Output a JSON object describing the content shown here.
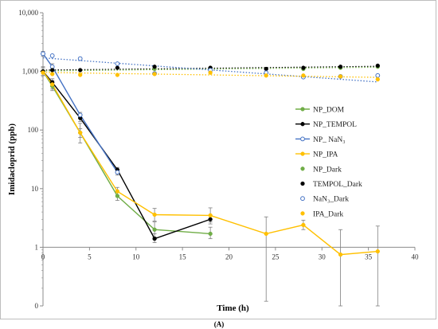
{
  "caption": "(A)",
  "colors": {
    "green": "#70ad47",
    "black": "#000000",
    "blue": "#4472c4",
    "yellow": "#ffc000",
    "axis": "#8c8c8c",
    "error": "#7f7f7f"
  },
  "chart_data": {
    "type": "line",
    "xlabel": "Time (h)",
    "ylabel": "Imidacloprid (ppb)",
    "xlim": [
      0,
      40
    ],
    "y_scale": "log",
    "xticks": [
      "0",
      "5",
      "10",
      "15",
      "20",
      "25",
      "30",
      "35",
      "40"
    ],
    "yticks": [
      {
        "value": 0.1,
        "label": "0"
      },
      {
        "value": 1,
        "label": "1"
      },
      {
        "value": 10,
        "label": "10"
      },
      {
        "value": 100,
        "label": "100"
      },
      {
        "value": 1000,
        "label": "1,000"
      },
      {
        "value": 10000,
        "label": "10,000"
      }
    ],
    "grid": false,
    "legend_position": "right",
    "series": [
      {
        "name": "NP_DOM",
        "style": "line",
        "color": "green",
        "marker": "filled",
        "points": [
          [
            0,
            1000
          ],
          [
            1,
            560
          ],
          [
            4,
            90
          ],
          [
            8,
            7.5
          ],
          [
            12,
            2.0
          ],
          [
            18,
            1.7
          ]
        ],
        "errors": [
          [
            0,
            1000,
            850,
            1150
          ],
          [
            1,
            560,
            470,
            660
          ],
          [
            4,
            90,
            60,
            130
          ],
          [
            8,
            7.5,
            6.3,
            9
          ],
          [
            12,
            2.0,
            1.5,
            2.7
          ],
          [
            18,
            1.7,
            1.4,
            2.2
          ]
        ]
      },
      {
        "name": "NP_TEMPOL",
        "style": "line",
        "color": "black",
        "marker": "filled",
        "points": [
          [
            0,
            1000
          ],
          [
            1,
            650
          ],
          [
            4,
            160
          ],
          [
            8,
            21
          ],
          [
            12,
            1.4
          ],
          [
            18,
            3.0
          ]
        ],
        "errors": [
          [
            0,
            1000,
            850,
            1200
          ],
          [
            1,
            650,
            550,
            750
          ],
          [
            4,
            160,
            140,
            185
          ],
          [
            8,
            21,
            19,
            23
          ],
          [
            12,
            1.4,
            1.2,
            1.7
          ],
          [
            18,
            3.0,
            2.5,
            3.5
          ]
        ]
      },
      {
        "name": "NP_ NaN₃",
        "style": "line",
        "color": "blue",
        "marker": "open",
        "points": [
          [
            0,
            2000
          ],
          [
            1,
            1200
          ],
          [
            4,
            180
          ],
          [
            8,
            19
          ]
        ],
        "errors": [
          [
            0,
            2000,
            1800,
            2200
          ],
          [
            1,
            1200,
            1050,
            1350
          ],
          [
            4,
            180,
            160,
            200
          ],
          [
            8,
            19,
            17,
            21
          ]
        ]
      },
      {
        "name": "NP_IPA",
        "style": "line",
        "color": "yellow",
        "marker": "filled",
        "points": [
          [
            0,
            1000
          ],
          [
            1,
            600
          ],
          [
            4,
            90
          ],
          [
            8,
            9
          ],
          [
            12,
            3.6
          ],
          [
            18,
            3.5
          ],
          [
            24,
            1.7
          ],
          [
            28,
            2.4
          ],
          [
            32,
            0.75
          ],
          [
            36,
            0.85
          ]
        ],
        "errors": [
          [
            0,
            1000,
            850,
            1150
          ],
          [
            1,
            600,
            500,
            700
          ],
          [
            4,
            90,
            75,
            105
          ],
          [
            8,
            9,
            7.5,
            10.5
          ],
          [
            12,
            3.6,
            2.8,
            4.6
          ],
          [
            18,
            3.5,
            2.7,
            4.7
          ],
          [
            24,
            1.7,
            0.12,
            3.3
          ],
          [
            28,
            2.4,
            2.0,
            2.9
          ],
          [
            32,
            0.75,
            0.1,
            2.0
          ],
          [
            36,
            0.85,
            0.1,
            2.3
          ]
        ]
      },
      {
        "name": "NP_Dark",
        "style": "points",
        "color": "green",
        "marker": "filled",
        "points": [
          [
            0,
            1000
          ],
          [
            1,
            1050
          ],
          [
            12,
            1100
          ],
          [
            18,
            1150
          ],
          [
            28,
            1100
          ],
          [
            32,
            1150
          ],
          [
            36,
            1200
          ]
        ]
      },
      {
        "name": "TEMPOL_Dark",
        "style": "points",
        "color": "black",
        "marker": "filled",
        "points": [
          [
            0,
            1000
          ],
          [
            1,
            1050
          ],
          [
            4,
            1050
          ],
          [
            8,
            1150
          ],
          [
            12,
            1200
          ],
          [
            18,
            1150
          ],
          [
            24,
            1100
          ],
          [
            28,
            1150
          ],
          [
            32,
            1200
          ],
          [
            36,
            1250
          ]
        ]
      },
      {
        "name": "NaN₃_Dark",
        "style": "points",
        "color": "blue",
        "marker": "open",
        "points": [
          [
            0,
            2000
          ],
          [
            1,
            1850
          ],
          [
            4,
            1650
          ],
          [
            8,
            1350
          ],
          [
            12,
            920
          ],
          [
            18,
            1050
          ],
          [
            24,
            950
          ],
          [
            28,
            800
          ],
          [
            32,
            820
          ],
          [
            36,
            850
          ]
        ]
      },
      {
        "name": "IPA_Dark",
        "style": "points",
        "color": "yellow",
        "marker": "filled",
        "points": [
          [
            0,
            950
          ],
          [
            1,
            900
          ],
          [
            4,
            870
          ],
          [
            8,
            870
          ],
          [
            12,
            900
          ],
          [
            18,
            950
          ],
          [
            24,
            850
          ],
          [
            28,
            850
          ],
          [
            32,
            820
          ],
          [
            36,
            730
          ]
        ]
      }
    ],
    "trendlines": [
      {
        "color": "black",
        "style": "dotted",
        "from": [
          0,
          1050
        ],
        "to": [
          36,
          1220
        ]
      },
      {
        "color": "green",
        "style": "dotted",
        "from": [
          0,
          1020
        ],
        "to": [
          36,
          1180
        ]
      },
      {
        "color": "blue",
        "style": "dotted",
        "from": [
          0,
          1700
        ],
        "to": [
          36,
          660
        ]
      },
      {
        "color": "yellow",
        "style": "dotted",
        "from": [
          0,
          960
        ],
        "to": [
          36,
          790
        ]
      }
    ]
  }
}
